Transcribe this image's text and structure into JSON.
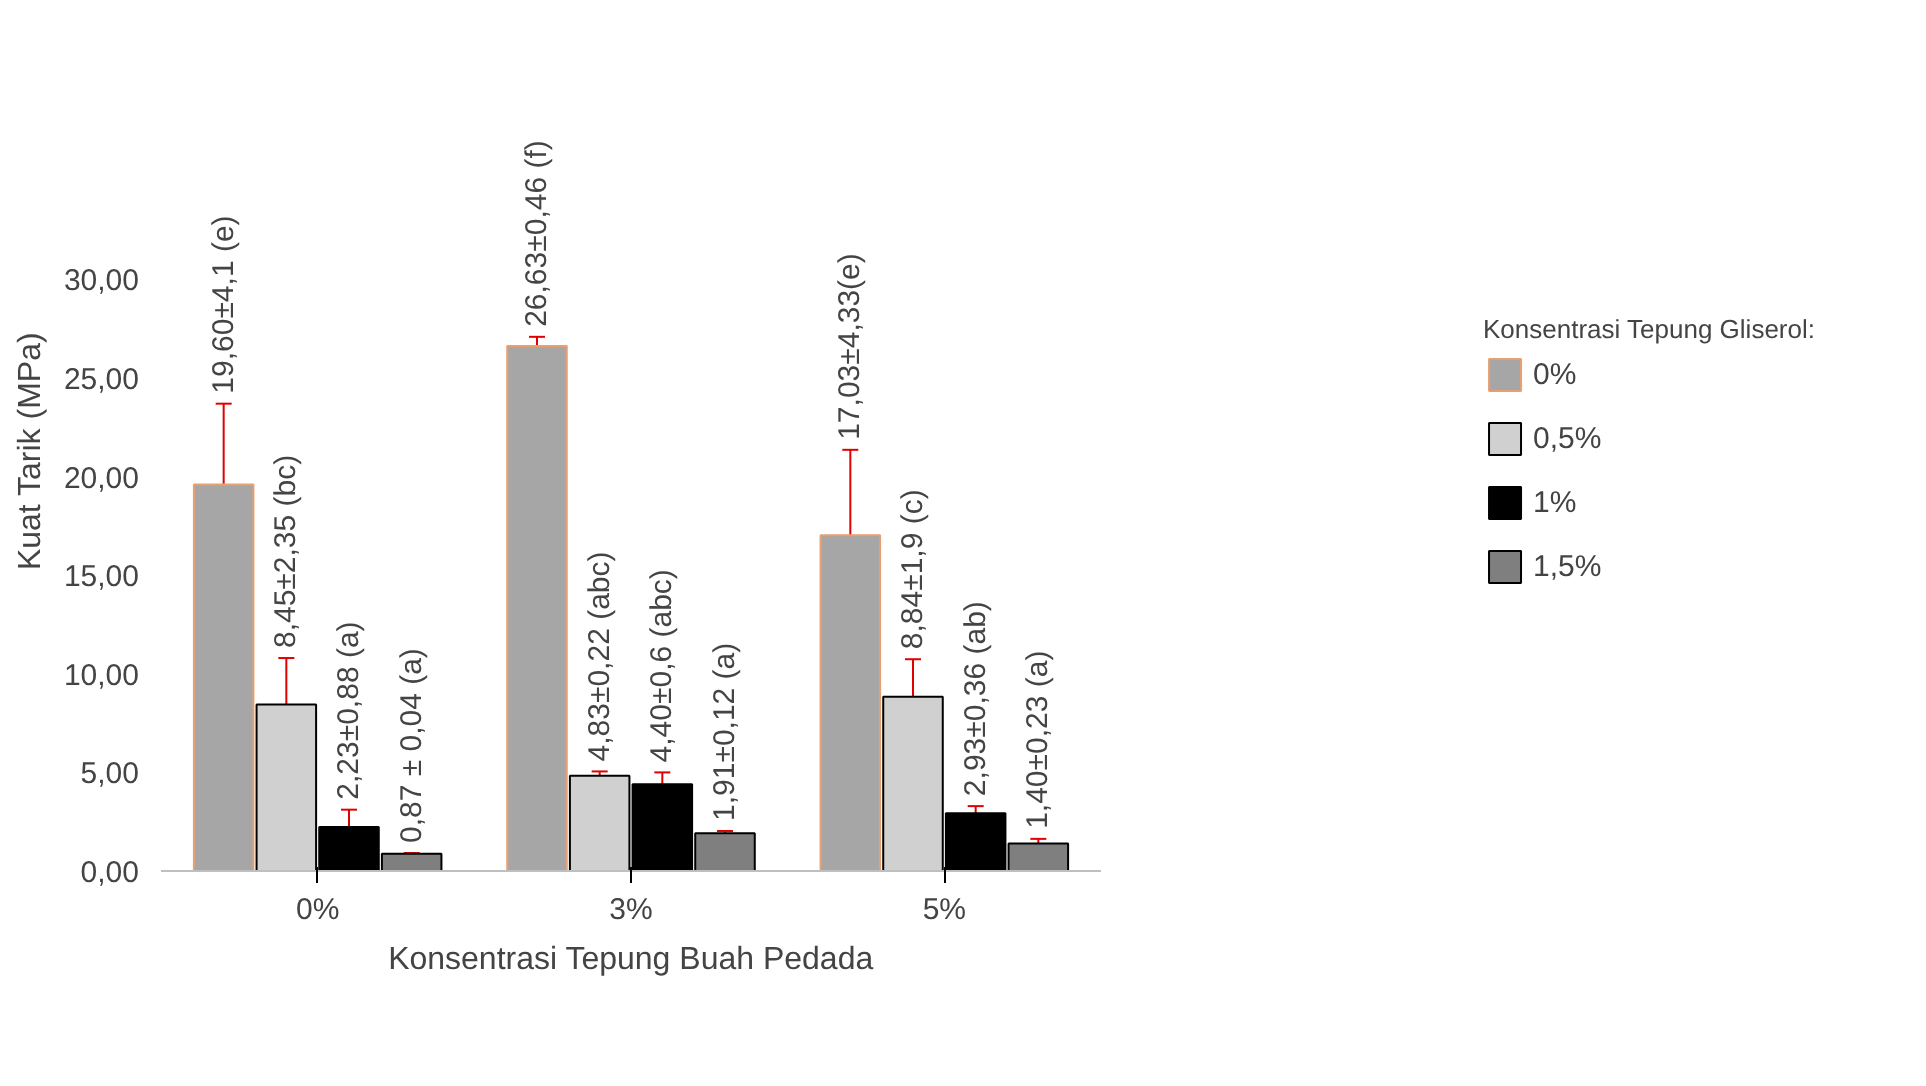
{
  "chart_data": {
    "type": "bar",
    "xlabel": "Konsentrasi Tepung Buah Pedada",
    "ylabel": "Kuat Tarik (MPa)",
    "legend_title": "Konsentrasi Tepung Gliserol:",
    "categories": [
      "0%",
      "3%",
      "5%"
    ],
    "series": [
      {
        "name": "0%",
        "color": "#a6a6a6",
        "values": [
          19.6,
          26.63,
          17.03
        ],
        "errors": [
          4.1,
          0.46,
          4.33
        ],
        "value_labels": [
          "19,60±4,1 (e)",
          "26,63±0,46 (f)",
          "17,03±4,33(e)"
        ]
      },
      {
        "name": "0,5%",
        "color": "#d0d0d0",
        "values": [
          8.45,
          4.83,
          8.84
        ],
        "errors": [
          2.35,
          0.22,
          1.9
        ],
        "value_labels": [
          "8,45±2,35 (bc)",
          "4,83±0,22 (abc)",
          "8,84±1,9 (c)"
        ]
      },
      {
        "name": "1%",
        "color": "#000000",
        "values": [
          2.23,
          4.4,
          2.93
        ],
        "errors": [
          0.88,
          0.6,
          0.36
        ],
        "value_labels": [
          "2,23±0,88 (a)",
          "4,40±0,6 (abc)",
          "2,93±0,36 (ab)"
        ]
      },
      {
        "name": "1,5%",
        "color": "#7f7f7f",
        "values": [
          0.87,
          1.91,
          1.4
        ],
        "errors": [
          0.04,
          0.12,
          0.23
        ],
        "value_labels": [
          "0,87 ± 0,04 (a)",
          "1,91±0,12 (a)",
          "1,40±0,23 (a)"
        ]
      }
    ],
    "ylim": [
      0,
      30
    ],
    "yticks": [
      {
        "value": 0,
        "label": "0,00"
      },
      {
        "value": 5,
        "label": "5,00"
      },
      {
        "value": 10,
        "label": "10,00"
      },
      {
        "value": 15,
        "label": "15,00"
      },
      {
        "value": 20,
        "label": "20,00"
      },
      {
        "value": 25,
        "label": "25,00"
      },
      {
        "value": 30,
        "label": "30,00"
      }
    ],
    "grid": false,
    "legend": "right"
  }
}
